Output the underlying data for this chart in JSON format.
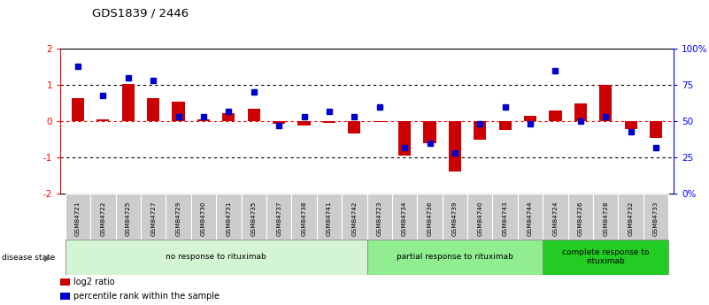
{
  "title": "GDS1839 / 2446",
  "samples": [
    "GSM84721",
    "GSM84722",
    "GSM84725",
    "GSM84727",
    "GSM84729",
    "GSM84730",
    "GSM84731",
    "GSM84735",
    "GSM84737",
    "GSM84738",
    "GSM84741",
    "GSM84742",
    "GSM84723",
    "GSM84734",
    "GSM84736",
    "GSM84739",
    "GSM84740",
    "GSM84743",
    "GSM84744",
    "GSM84724",
    "GSM84726",
    "GSM84728",
    "GSM84732",
    "GSM84733"
  ],
  "log2_ratio": [
    0.65,
    0.05,
    1.02,
    0.65,
    0.55,
    0.05,
    0.22,
    0.35,
    -0.08,
    -0.12,
    -0.04,
    -0.35,
    -0.02,
    -0.95,
    -0.6,
    -1.38,
    -0.5,
    -0.25,
    0.15,
    0.3,
    0.5,
    1.0,
    -0.22,
    -0.45
  ],
  "percentile": [
    88,
    68,
    80,
    78,
    53,
    53,
    57,
    70,
    47,
    53,
    57,
    53,
    60,
    32,
    35,
    28,
    48,
    60,
    48,
    85,
    50,
    53,
    43,
    32
  ],
  "groups": [
    {
      "label": "no response to rituximab",
      "start": 0,
      "end": 12,
      "color": "#d4f5d4"
    },
    {
      "label": "partial response to rituximab",
      "start": 12,
      "end": 19,
      "color": "#90ee90"
    },
    {
      "label": "complete response to\nrituximab",
      "start": 19,
      "end": 24,
      "color": "#22cc22"
    }
  ],
  "bar_color_red": "#cc0000",
  "bar_color_blue": "#0000cc",
  "ylim_left": [
    -2,
    2
  ],
  "ylim_right": [
    0,
    100
  ],
  "yticks_left": [
    -2,
    -1,
    0,
    1,
    2
  ],
  "yticks_right": [
    0,
    25,
    50,
    75,
    100
  ],
  "legend_items": [
    {
      "label": "log2 ratio",
      "color": "#cc0000"
    },
    {
      "label": "percentile rank within the sample",
      "color": "#0000cc"
    }
  ]
}
